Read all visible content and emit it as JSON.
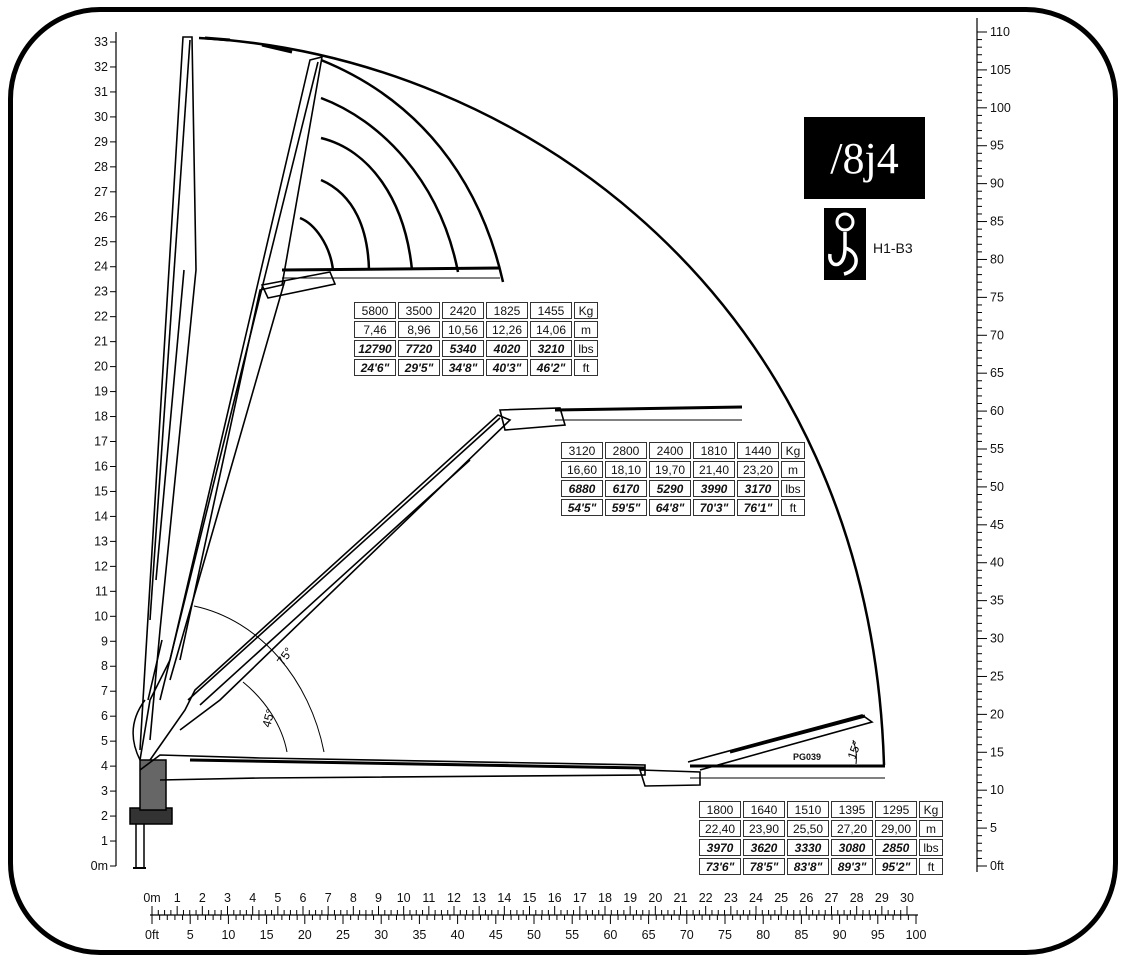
{
  "model": "/8j4",
  "hook_code": "H1-B3",
  "config_code": "PG039",
  "colors": {
    "ink": "#000000",
    "background": "#ffffff"
  },
  "angles": [
    "75°",
    "45°",
    "15°"
  ],
  "left_axis": {
    "unit": "m",
    "labels": [
      "0m",
      "1",
      "2",
      "3",
      "4",
      "5",
      "6",
      "7",
      "8",
      "9",
      "10",
      "11",
      "12",
      "13",
      "14",
      "15",
      "16",
      "17",
      "18",
      "19",
      "20",
      "21",
      "22",
      "23",
      "24",
      "25",
      "26",
      "27",
      "28",
      "29",
      "30",
      "31",
      "32",
      "33"
    ]
  },
  "right_axis": {
    "unit": "ft",
    "labels": [
      "0ft",
      "5",
      "10",
      "15",
      "20",
      "25",
      "30",
      "35",
      "40",
      "45",
      "50",
      "55",
      "60",
      "65",
      "70",
      "75",
      "80",
      "85",
      "90",
      "95",
      "100",
      "105",
      "110"
    ]
  },
  "bottom_axis_m": {
    "labels": [
      "0m",
      "1",
      "2",
      "3",
      "4",
      "5",
      "6",
      "7",
      "8",
      "9",
      "10",
      "11",
      "12",
      "13",
      "14",
      "15",
      "16",
      "17",
      "18",
      "19",
      "20",
      "21",
      "22",
      "23",
      "24",
      "25",
      "26",
      "27",
      "28",
      "29",
      "30"
    ]
  },
  "bottom_axis_ft": {
    "labels": [
      "0ft",
      "5",
      "10",
      "15",
      "20",
      "25",
      "30",
      "35",
      "40",
      "45",
      "50",
      "55",
      "60",
      "65",
      "70",
      "75",
      "80",
      "85",
      "90",
      "95",
      "100"
    ]
  },
  "load_tables": [
    {
      "units": [
        "Kg",
        "m",
        "lbs",
        "ft"
      ],
      "kg": [
        "5800",
        "3500",
        "2420",
        "1825",
        "1455"
      ],
      "m": [
        "7,46",
        "8,96",
        "10,56",
        "12,26",
        "14,06"
      ],
      "lbs": [
        "12790",
        "7720",
        "5340",
        "4020",
        "3210"
      ],
      "ft": [
        "24'6\"",
        "29'5\"",
        "34'8\"",
        "40'3\"",
        "46'2\""
      ]
    },
    {
      "units": [
        "Kg",
        "m",
        "lbs",
        "ft"
      ],
      "kg": [
        "3120",
        "2800",
        "2400",
        "1810",
        "1440"
      ],
      "m": [
        "16,60",
        "18,10",
        "19,70",
        "21,40",
        "23,20"
      ],
      "lbs": [
        "6880",
        "6170",
        "5290",
        "3990",
        "3170"
      ],
      "ft": [
        "54'5\"",
        "59'5\"",
        "64'8\"",
        "70'3\"",
        "76'1\""
      ]
    },
    {
      "units": [
        "Kg",
        "m",
        "lbs",
        "ft"
      ],
      "kg": [
        "1800",
        "1640",
        "1510",
        "1395",
        "1295"
      ],
      "m": [
        "22,40",
        "23,90",
        "25,50",
        "27,20",
        "29,00"
      ],
      "lbs": [
        "3970",
        "3620",
        "3330",
        "3080",
        "2850"
      ],
      "ft": [
        "73'6\"",
        "78'5\"",
        "83'8\"",
        "89'3\"",
        "95'2\""
      ]
    }
  ]
}
